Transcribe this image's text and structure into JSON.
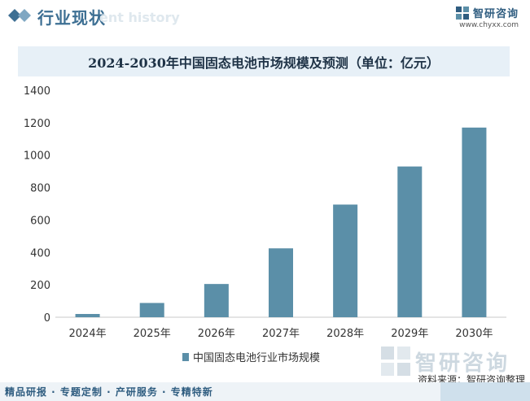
{
  "header": {
    "title": "行业现状",
    "ghost_text": "ent history"
  },
  "brand": {
    "name": "智研咨询",
    "url": "www.chyxx.com",
    "color": "#2f5d80"
  },
  "chart_data": {
    "type": "bar",
    "title": "2024-2030年中国固态电池市场规模及预测（单位：亿元）",
    "categories": [
      "2024年",
      "2025年",
      "2026年",
      "2027年",
      "2028年",
      "2029年",
      "2030年"
    ],
    "series": [
      {
        "name": "中国固态电池行业市场规模",
        "values": [
          20,
          88,
          205,
          425,
          695,
          930,
          1170
        ],
        "color": "#5b8fa8"
      }
    ],
    "ylim": [
      0,
      1400
    ],
    "yticks": [
      0,
      200,
      400,
      600,
      800,
      1000,
      1200,
      1400
    ],
    "grid": false,
    "legend": "bottom"
  },
  "watermark": {
    "text": "智研咨询"
  },
  "source": "资料来源：智研咨询整理",
  "footer": {
    "text": "精品研报 · 专题定制 · 产研服务 · 专精特新"
  }
}
